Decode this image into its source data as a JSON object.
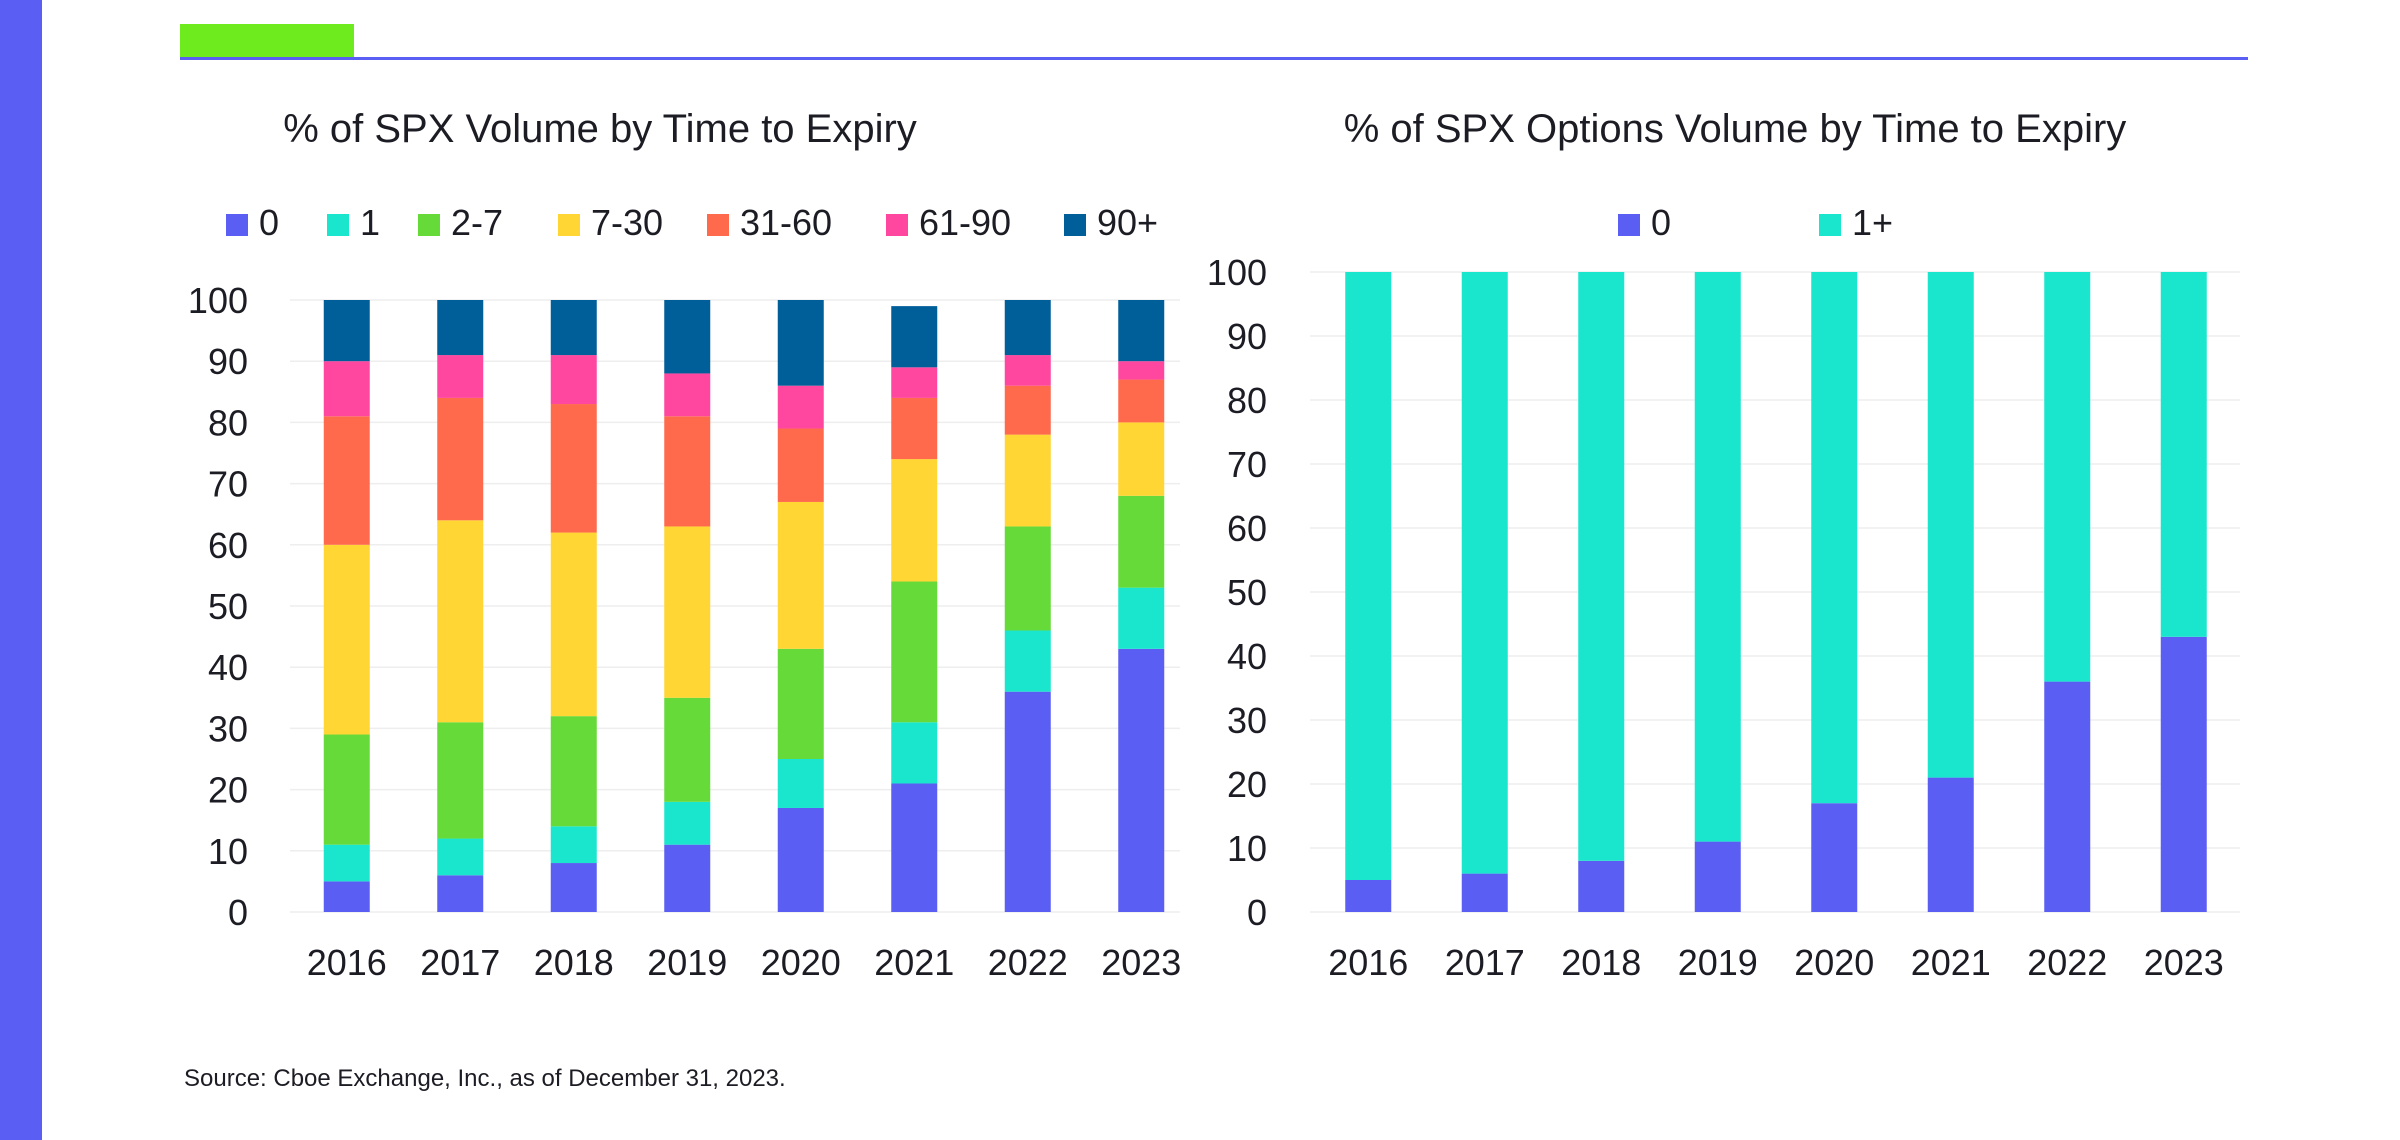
{
  "colors": {
    "brand_bar": "#5b5ef2",
    "accent_tab": "#6eeb1f",
    "rule": "#5b5ef2",
    "grid": "#eeeeee"
  },
  "chart_data": [
    {
      "type": "bar",
      "stacked": true,
      "title": "% of SPX Volume by Time to Expiry",
      "xlabel": "",
      "ylabel": "",
      "categories": [
        "2016",
        "2017",
        "2018",
        "2019",
        "2020",
        "2021",
        "2022",
        "2023"
      ],
      "ylim": [
        0,
        100
      ],
      "yticks": [
        0,
        10,
        20,
        30,
        40,
        50,
        60,
        70,
        80,
        90,
        100
      ],
      "grid": true,
      "legend_position": "top",
      "series": [
        {
          "name": "0",
          "color": "#5b5ef2",
          "values": [
            5,
            6,
            8,
            11,
            17,
            21,
            36,
            43
          ]
        },
        {
          "name": "1",
          "color": "#19e6cc",
          "values": [
            6,
            6,
            6,
            7,
            8,
            10,
            10,
            10
          ]
        },
        {
          "name": "2-7",
          "color": "#65da38",
          "values": [
            18,
            19,
            18,
            17,
            18,
            23,
            17,
            15
          ]
        },
        {
          "name": "7-30",
          "color": "#ffd633",
          "values": [
            31,
            33,
            30,
            28,
            24,
            20,
            15,
            12
          ]
        },
        {
          "name": "31-60",
          "color": "#ff6a4d",
          "values": [
            21,
            20,
            21,
            18,
            12,
            10,
            8,
            7
          ]
        },
        {
          "name": "61-90",
          "color": "#ff479f",
          "values": [
            9,
            7,
            8,
            7,
            7,
            5,
            5,
            3
          ]
        },
        {
          "name": "90+",
          "color": "#005e99",
          "values": [
            10,
            9,
            9,
            12,
            14,
            10,
            9,
            10
          ]
        }
      ]
    },
    {
      "type": "bar",
      "stacked": true,
      "title": "% of SPX Options Volume by Time to Expiry",
      "xlabel": "",
      "ylabel": "",
      "categories": [
        "2016",
        "2017",
        "2018",
        "2019",
        "2020",
        "2021",
        "2022",
        "2023"
      ],
      "ylim": [
        0,
        100
      ],
      "yticks": [
        0,
        10,
        20,
        30,
        40,
        50,
        60,
        70,
        80,
        90,
        100
      ],
      "grid": true,
      "legend_position": "top",
      "series": [
        {
          "name": "0",
          "color": "#5b5ef2",
          "values": [
            5,
            6,
            8,
            11,
            17,
            21,
            36,
            43
          ]
        },
        {
          "name": "1+",
          "color": "#19e6cc",
          "values": [
            95,
            94,
            92,
            89,
            83,
            79,
            64,
            57
          ]
        }
      ]
    }
  ],
  "source_note": "Source: Cboe Exchange, Inc., as of December 31, 2023."
}
